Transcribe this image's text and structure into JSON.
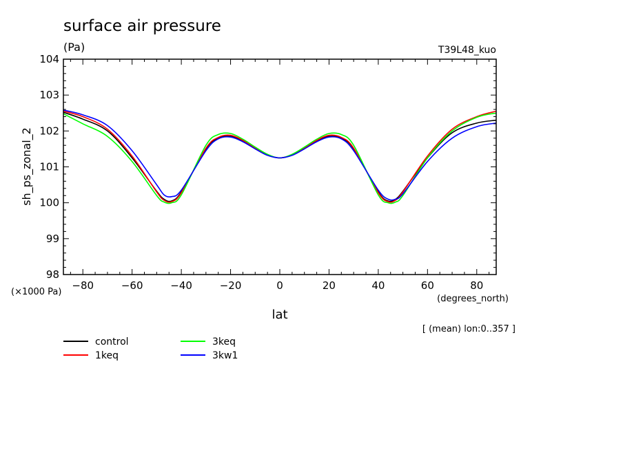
{
  "chart_data": {
    "type": "line",
    "title": "surface air pressure",
    "units": "(Pa)",
    "run_label": "T39L48_kuo",
    "ylabel": "sh_ps_zonal_2",
    "xlabel": "lat",
    "x_units": "(degrees_north)",
    "y_scale_note": "(×1000 Pa)",
    "subset_note": "[ (mean) lon:0..357 ]",
    "xlim": [
      -87.9,
      87.9
    ],
    "ylim": [
      98,
      104
    ],
    "xticks": [
      -80,
      -60,
      -40,
      -20,
      0,
      20,
      40,
      60,
      80
    ],
    "yticks": [
      98,
      99,
      100,
      101,
      102,
      103,
      104
    ],
    "grid": false,
    "legend_position": "bottom-left",
    "series": [
      {
        "name": "control",
        "color": "#000000",
        "x": [
          -87.9,
          -80,
          -70,
          -60,
          -50,
          -47,
          -44,
          -40,
          -30,
          -25,
          -20,
          -15,
          -10,
          -5,
          0,
          5,
          10,
          15,
          20,
          25,
          30,
          40,
          44,
          47,
          50,
          60,
          70,
          80,
          87.9
        ],
        "y": [
          102.52,
          102.33,
          102.0,
          101.25,
          100.32,
          100.1,
          100.05,
          100.3,
          101.5,
          101.8,
          101.85,
          101.72,
          101.52,
          101.33,
          101.25,
          101.33,
          101.52,
          101.72,
          101.85,
          101.8,
          101.5,
          100.3,
          100.05,
          100.1,
          100.32,
          101.25,
          101.95,
          102.22,
          102.3
        ]
      },
      {
        "name": "1keq",
        "color": "#ff0000",
        "x": [
          -87.9,
          -80,
          -70,
          -60,
          -50,
          -47,
          -44,
          -40,
          -30,
          -25,
          -20,
          -15,
          -10,
          -5,
          0,
          5,
          10,
          15,
          20,
          25,
          30,
          40,
          44,
          47,
          50,
          60,
          70,
          80,
          87.9
        ],
        "y": [
          102.55,
          102.4,
          102.05,
          101.3,
          100.3,
          100.07,
          100.03,
          100.28,
          101.52,
          101.82,
          101.88,
          101.74,
          101.53,
          101.34,
          101.25,
          101.34,
          101.53,
          101.74,
          101.88,
          101.82,
          101.52,
          100.28,
          100.03,
          100.07,
          100.3,
          101.3,
          102.05,
          102.4,
          102.55
        ]
      },
      {
        "name": "3keq",
        "color": "#00ff00",
        "x": [
          -87.9,
          -80,
          -70,
          -60,
          -50,
          -47,
          -44,
          -40,
          -30,
          -25,
          -20,
          -15,
          -10,
          -5,
          0,
          5,
          10,
          15,
          20,
          25,
          30,
          40,
          44,
          47,
          50,
          60,
          70,
          80,
          87.9
        ],
        "y": [
          102.48,
          102.2,
          101.85,
          101.15,
          100.2,
          100.02,
          100.0,
          100.22,
          101.6,
          101.9,
          101.93,
          101.77,
          101.55,
          101.35,
          101.25,
          101.35,
          101.55,
          101.77,
          101.93,
          101.9,
          101.6,
          100.22,
          100.0,
          100.02,
          100.2,
          101.25,
          102.0,
          102.38,
          102.5
        ]
      },
      {
        "name": "3kw1",
        "color": "#0000ff",
        "x": [
          -87.9,
          -80,
          -70,
          -60,
          -50,
          -47,
          -44,
          -40,
          -30,
          -25,
          -20,
          -15,
          -10,
          -5,
          0,
          5,
          10,
          15,
          20,
          25,
          30,
          40,
          44,
          47,
          50,
          60,
          70,
          80,
          87.9
        ],
        "y": [
          102.58,
          102.45,
          102.15,
          101.45,
          100.5,
          100.22,
          100.17,
          100.35,
          101.45,
          101.78,
          101.83,
          101.7,
          101.5,
          101.32,
          101.25,
          101.32,
          101.5,
          101.7,
          101.83,
          101.78,
          101.45,
          100.35,
          100.1,
          100.1,
          100.25,
          101.15,
          101.8,
          102.12,
          102.22
        ]
      }
    ]
  }
}
